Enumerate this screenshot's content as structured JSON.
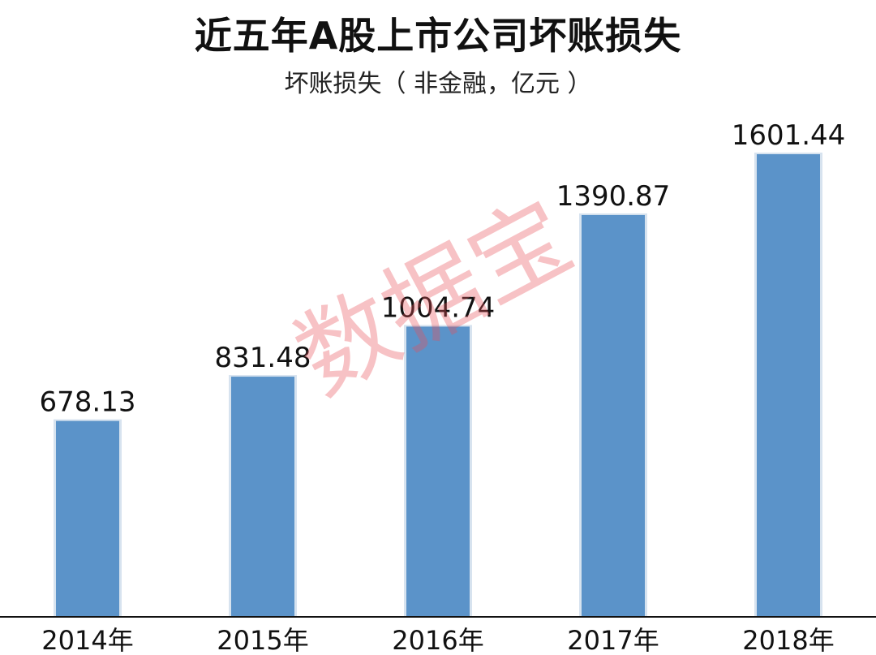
{
  "title": "近五年A股上市公司坏账损失",
  "subtitle": "坏账损失（ 非金融，亿元 ）",
  "watermark": "数据宝",
  "colors": {
    "bar": "#5b93c9",
    "bar_edge": "#d7e3ef",
    "axis": "#111111",
    "watermark": "#e8505a"
  },
  "chart_data": {
    "type": "bar",
    "title": "近五年A股上市公司坏账损失",
    "subtitle": "坏账损失（ 非金融，亿元 ）",
    "categories": [
      "2014年",
      "2015年",
      "2016年",
      "2017年",
      "2018年"
    ],
    "values": [
      678.13,
      831.48,
      1004.74,
      1390.87,
      1601.44
    ],
    "value_labels": [
      "678.13",
      "831.48",
      "1004.74",
      "1390.87",
      "1601.44"
    ],
    "ylim": [
      0,
      1601.44
    ],
    "grid": false,
    "legend": "none"
  }
}
